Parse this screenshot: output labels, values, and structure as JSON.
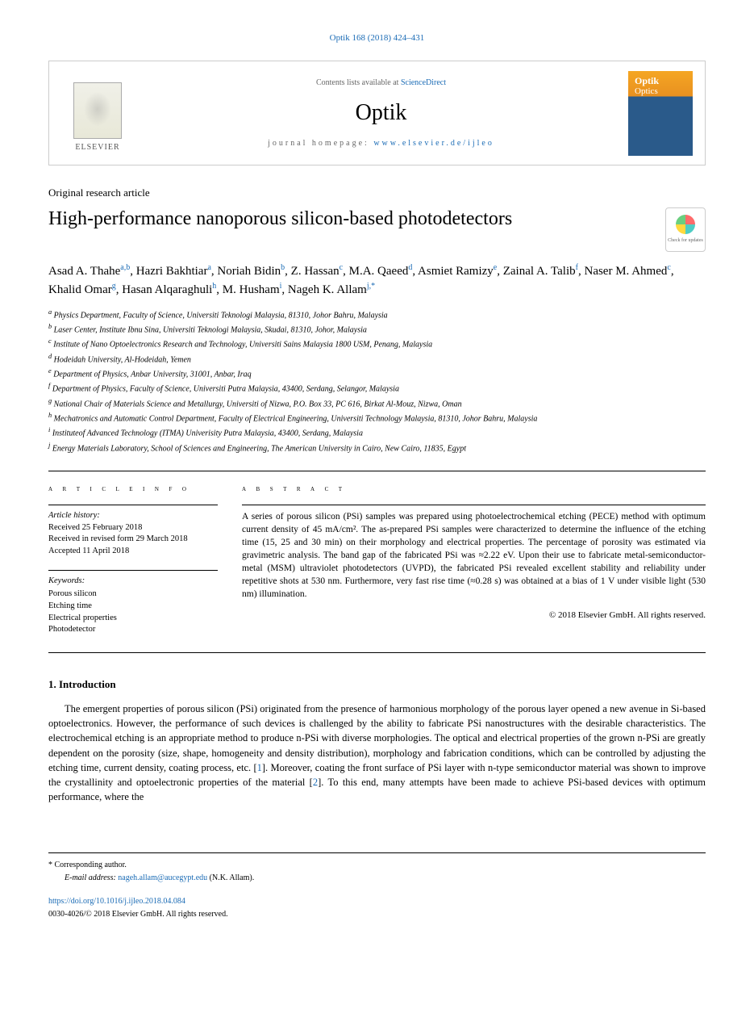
{
  "citation": "Optik 168 (2018) 424–431",
  "header": {
    "publisher": "ELSEVIER",
    "contents_prefix": "Contents lists available at ",
    "contents_link": "ScienceDirect",
    "journal": "Optik",
    "homepage_prefix": "journal homepage: ",
    "homepage_link": "www.elsevier.de/ijleo"
  },
  "article_type": "Original research article",
  "title": "High-performance nanoporous silicon-based photodetectors",
  "check_updates": "Check for updates",
  "authors_html": "Asad A. Thahe<sup>a,b</sup>, Hazri Bakhtiar<sup>a</sup>, Noriah Bidin<sup>b</sup>, Z. Hassan<sup>c</sup>, M.A. Qaeed<sup>d</sup>, Asmiet Ramizy<sup>e</sup>, Zainal A. Talib<sup>f</sup>, Naser M. Ahmed<sup>c</sup>, Khalid Omar<sup>g</sup>, Hasan Alqaraghuli<sup>h</sup>, M. Husham<sup>i</sup>, Nageh K. Allam<sup>j,*</sup>",
  "affiliations": [
    "a Physics Department, Faculty of Science, Universiti Teknologi Malaysia, 81310, Johor Bahru, Malaysia",
    "b Laser Center, Institute Ibnu Sina, Universiti Teknologi Malaysia, Skudai, 81310, Johor, Malaysia",
    "c Institute of Nano Optoelectronics Research and Technology, Universiti Sains Malaysia 1800 USM, Penang, Malaysia",
    "d Hodeidah University, Al-Hodeidah, Yemen",
    "e Department of Physics, Anbar University, 31001, Anbar, Iraq",
    "f Department of Physics, Faculty of Science, Universiti Putra Malaysia, 43400, Serdang, Selangor, Malaysia",
    "g National Chair of Materials Science and Metallurgy, Universiti of Nizwa, P.O. Box 33, PC 616, Birkat Al-Mouz, Nizwa, Oman",
    "h Mechatronics and Automatic Control Department, Faculty of Electrical Engineering, Universiti Technology Malaysia, 81310, Johor Bahru, Malaysia",
    "i Instituteof Advanced Technology (ITMA) Univerisity Putra Malaysia, 43400, Serdang, Malaysia",
    "j Energy Materials Laboratory, School of Sciences and Engineering, The American University in Cairo, New Cairo, 11835, Egypt"
  ],
  "info": {
    "heading": "a r t i c l e   i n f o",
    "history_label": "Article history:",
    "history": [
      "Received 25 February 2018",
      "Received in revised form 29 March 2018",
      "Accepted 11 April 2018"
    ],
    "keywords_label": "Keywords:",
    "keywords": [
      "Porous silicon",
      "Etching time",
      "Electrical properties",
      "Photodetector"
    ]
  },
  "abstract": {
    "heading": "a b s t r a c t",
    "text": "A series of porous silicon (PSi) samples was prepared using photoelectrochemical etching (PECE) method with optimum current density of 45 mA/cm². The as-prepared PSi samples were characterized to determine the influence of the etching time (15, 25 and 30 min) on their morphology and electrical properties. The percentage of porosity was estimated via gravimetric analysis. The band gap of the fabricated PSi was ≈2.22 eV. Upon their use to fabricate metal-semiconductor-metal (MSM) ultraviolet photodetectors (UVPD), the fabricated PSi revealed excellent stability and reliability under repetitive shots at 530 nm. Furthermore, very fast rise time (≈0.28 s) was obtained at a bias of 1 V under visible light (530 nm) illumination.",
    "copyright": "© 2018 Elsevier GmbH. All rights reserved."
  },
  "section1": {
    "heading": "1. Introduction",
    "paragraph": "The emergent properties of porous silicon (PSi) originated from the presence of harmonious morphology of the porous layer opened a new avenue in Si-based optoelectronics. However, the performance of such devices is challenged by the ability to fabricate PSi nanostructures with the desirable characteristics. The electrochemical etching is an appropriate method to produce n-PSi with diverse morphologies. The optical and electrical properties of the grown n-PSi are greatly dependent on the porosity (size, shape, homogeneity and density distribution), morphology and fabrication conditions, which can be controlled by adjusting the etching time, current density, coating process, etc. [1]. Moreover, coating the front surface of PSi layer with n-type semiconductor material was shown to improve the crystallinity and optoelectronic properties of the material [2]. To this end, many attempts have been made to achieve PSi-based devices with optimum performance, where the"
  },
  "footer": {
    "corresp": "* Corresponding author.",
    "email_label": "E-mail address: ",
    "email": "nageh.allam@aucegypt.edu",
    "email_suffix": " (N.K. Allam).",
    "doi": "https://doi.org/10.1016/j.ijleo.2018.04.084",
    "issn": "0030-4026/© 2018 Elsevier GmbH. All rights reserved."
  },
  "colors": {
    "link": "#1a6bb5",
    "text": "#000000",
    "border": "#cccccc"
  }
}
